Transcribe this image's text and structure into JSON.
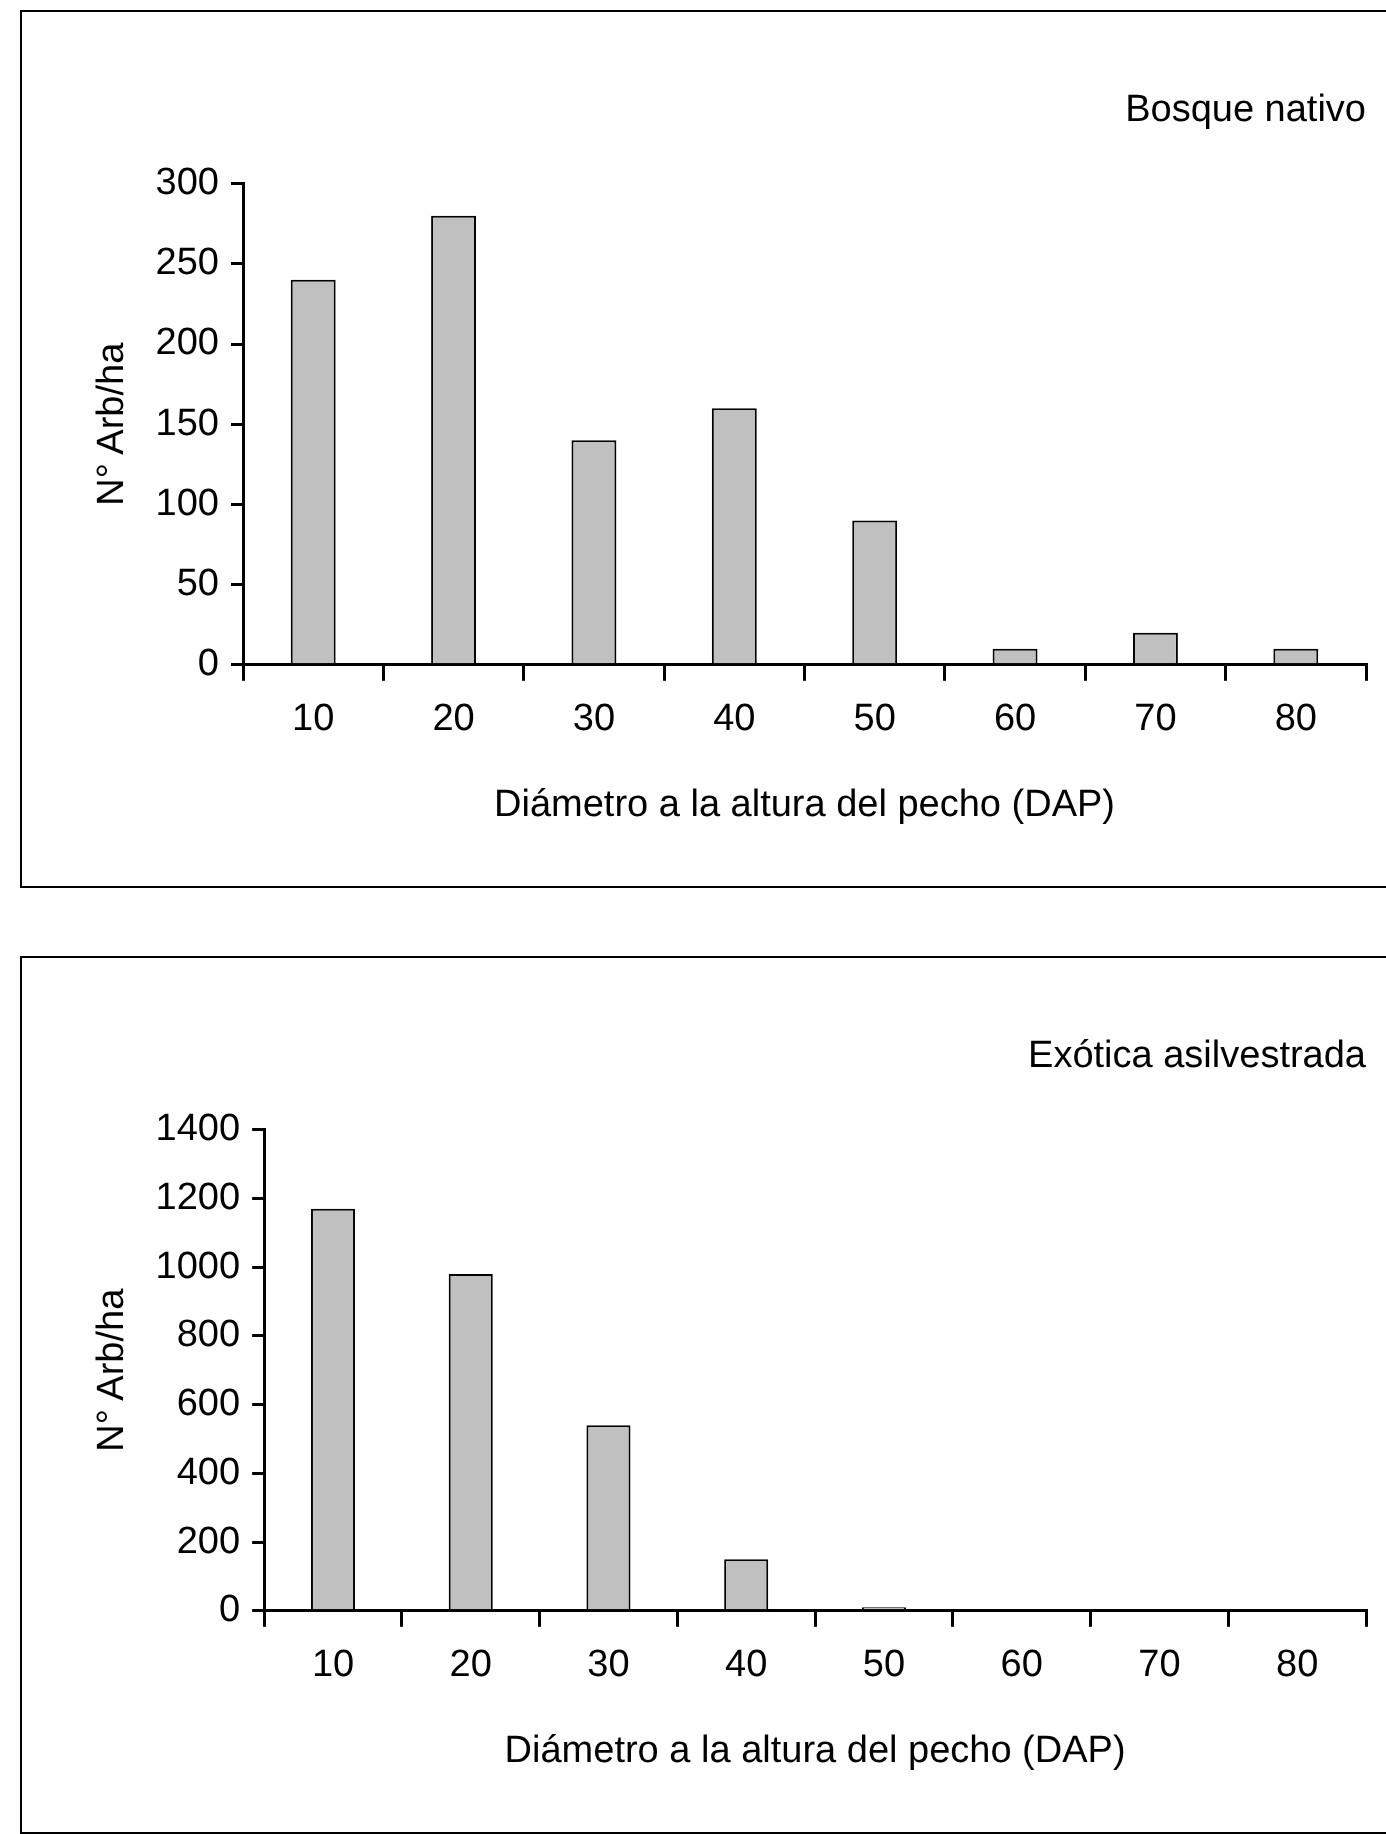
{
  "chart_data": [
    {
      "type": "bar",
      "title": "Bosque nativo",
      "xlabel": "Diámetro a la altura del pecho (DAP)",
      "ylabel": "N° Arb/ha",
      "categories": [
        "10",
        "20",
        "30",
        "40",
        "50",
        "60",
        "70",
        "80"
      ],
      "values": [
        240,
        280,
        140,
        160,
        90,
        10,
        20,
        10
      ],
      "color": "#c0c0c0",
      "ylim": [
        0,
        300
      ],
      "yticks": [
        0,
        50,
        100,
        150,
        200,
        250,
        300
      ],
      "grid": false,
      "legend": false
    },
    {
      "type": "bar",
      "title": "Exótica asilvestrada",
      "xlabel": "Diámetro a la altura del pecho (DAP)",
      "ylabel": "N° Arb/ha",
      "categories": [
        "10",
        "20",
        "30",
        "40",
        "50",
        "60",
        "70",
        "80"
      ],
      "values": [
        1170,
        980,
        540,
        150,
        10,
        0,
        0,
        0
      ],
      "color": "#c0c0c0",
      "ylim": [
        0,
        1400
      ],
      "yticks": [
        0,
        200,
        400,
        600,
        800,
        1000,
        1200,
        1400
      ],
      "grid": false,
      "legend": false
    }
  ]
}
